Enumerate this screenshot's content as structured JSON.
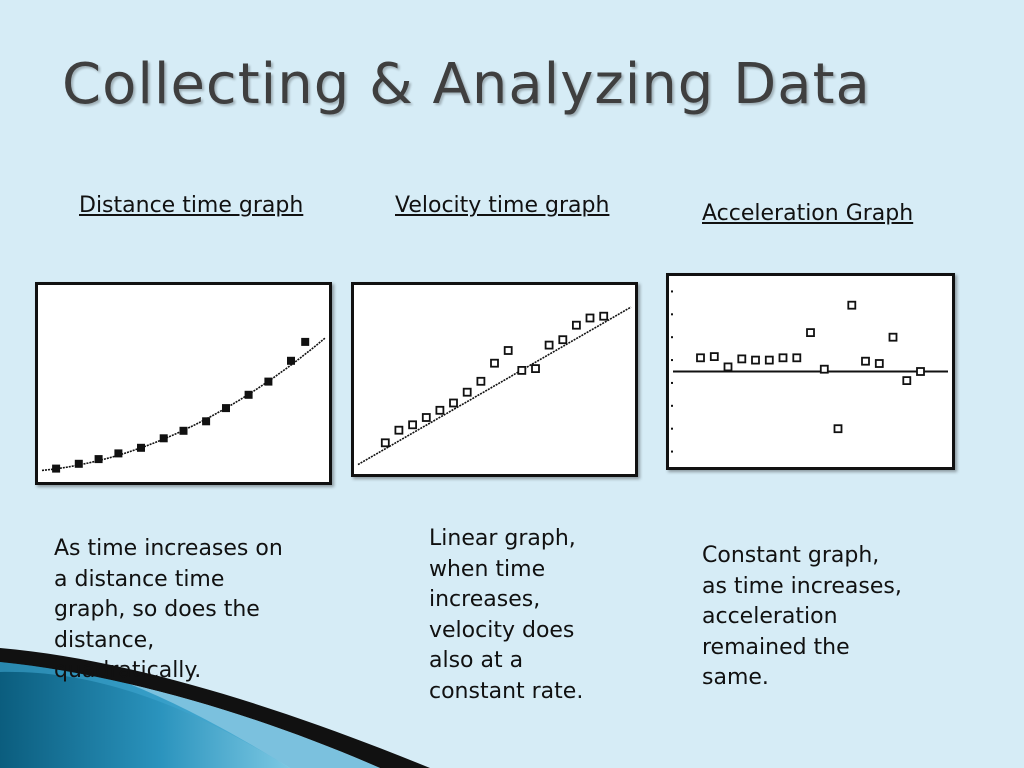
{
  "slide": {
    "title": "Collecting & Analyzing Data"
  },
  "panels": [
    {
      "heading": "Distance time graph",
      "caption_lines": [
        "As time increases on",
        "a distance time",
        "graph, so does the",
        "distance,",
        "quadratically."
      ]
    },
    {
      "heading": "Velocity time graph",
      "caption_lines": [
        "Linear graph,",
        "when time",
        "increases,",
        "velocity does",
        "also at a",
        "constant rate."
      ]
    },
    {
      "heading": "Acceleration Graph",
      "caption_lines": [
        "Constant graph,",
        "as time increases,",
        "acceleration",
        "remained the",
        "same."
      ]
    }
  ],
  "colors": {
    "background": "#d6ecf6",
    "title": "#3f3f3f",
    "ink": "#111111",
    "accent_dark": "#0b5d7e",
    "accent_light": "#4fb3d6"
  },
  "chart_data": [
    {
      "type": "scatter",
      "title": "",
      "xlabel": "",
      "ylabel": "",
      "grid": false,
      "markers": "filled-square",
      "fit": "quadratic",
      "xlim": [
        0,
        10
      ],
      "ylim": [
        0,
        10
      ],
      "x": [
        0.5,
        1.3,
        2.0,
        2.7,
        3.5,
        4.3,
        5.0,
        5.8,
        6.5,
        7.3,
        8.0,
        8.8,
        9.3
      ],
      "y": [
        0.5,
        0.75,
        1.0,
        1.3,
        1.6,
        2.1,
        2.5,
        3.0,
        3.7,
        4.4,
        5.1,
        6.2,
        7.2
      ],
      "fit_coefficients": [
        0.4,
        0.15,
        0.055
      ]
    },
    {
      "type": "scatter",
      "title": "",
      "xlabel": "",
      "ylabel": "",
      "grid": false,
      "markers": "hollow-square",
      "fit": "linear",
      "xlim": [
        0,
        10
      ],
      "ylim": [
        0,
        10
      ],
      "x": [
        1.0,
        1.5,
        2.0,
        2.5,
        3.0,
        3.5,
        4.0,
        4.5,
        5.0,
        5.5,
        6.0,
        6.5,
        7.0,
        7.5,
        8.0,
        8.5,
        9.0
      ],
      "y": [
        1.5,
        2.2,
        2.5,
        2.9,
        3.3,
        3.7,
        4.3,
        4.9,
        5.9,
        6.6,
        5.5,
        5.6,
        6.9,
        7.2,
        8.0,
        8.4,
        8.5
      ],
      "fit_coefficients": [
        0.3,
        0.87
      ]
    },
    {
      "type": "scatter",
      "title": "",
      "xlabel": "",
      "ylabel": "",
      "grid": false,
      "markers": "hollow-square",
      "fit": "constant",
      "xlim": [
        0,
        10
      ],
      "ylim": [
        -4,
        4
      ],
      "x": [
        1.0,
        1.5,
        2.0,
        2.5,
        3.0,
        3.5,
        4.0,
        4.5,
        5.0,
        5.5,
        6.0,
        6.5,
        7.0,
        7.5,
        8.0,
        8.5,
        9.0
      ],
      "y": [
        0.6,
        0.65,
        0.2,
        0.55,
        0.5,
        0.5,
        0.6,
        0.6,
        1.7,
        0.1,
        -2.5,
        2.9,
        0.45,
        0.35,
        1.5,
        -0.4,
        0.0
      ],
      "fit_coefficients": [
        0.0
      ]
    }
  ]
}
